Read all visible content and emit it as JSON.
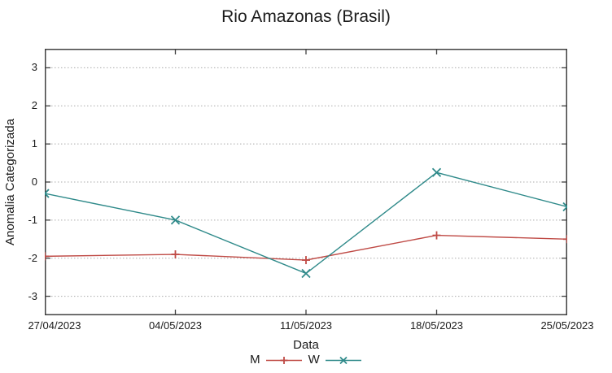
{
  "chart_data": {
    "type": "line",
    "title": "Rio Amazonas (Brasil)",
    "xlabel": "Data",
    "ylabel": "Anomalia Categorizada",
    "categories": [
      "27/04/2023",
      "04/05/2023",
      "11/05/2023",
      "18/05/2023",
      "25/05/2023"
    ],
    "y_ticks": [
      3,
      2,
      1,
      0,
      -1,
      -2,
      -3
    ],
    "ylim": [
      -3.5,
      3.5
    ],
    "grid": "horizontal-dotted",
    "legend_position": "bottom-center",
    "series": [
      {
        "name": "M",
        "marker": "plus",
        "color": "#bf4a45",
        "values": [
          -1.95,
          -1.9,
          -2.05,
          -1.4,
          -1.5
        ]
      },
      {
        "name": "W",
        "marker": "cross",
        "color": "#2f8a8a",
        "values": [
          -0.3,
          -1.0,
          -2.4,
          0.25,
          -0.65
        ]
      }
    ]
  },
  "colors": {
    "border": "#404040",
    "grid": "#ababab",
    "text": "#1a1a1a",
    "background": "#ffffff"
  }
}
